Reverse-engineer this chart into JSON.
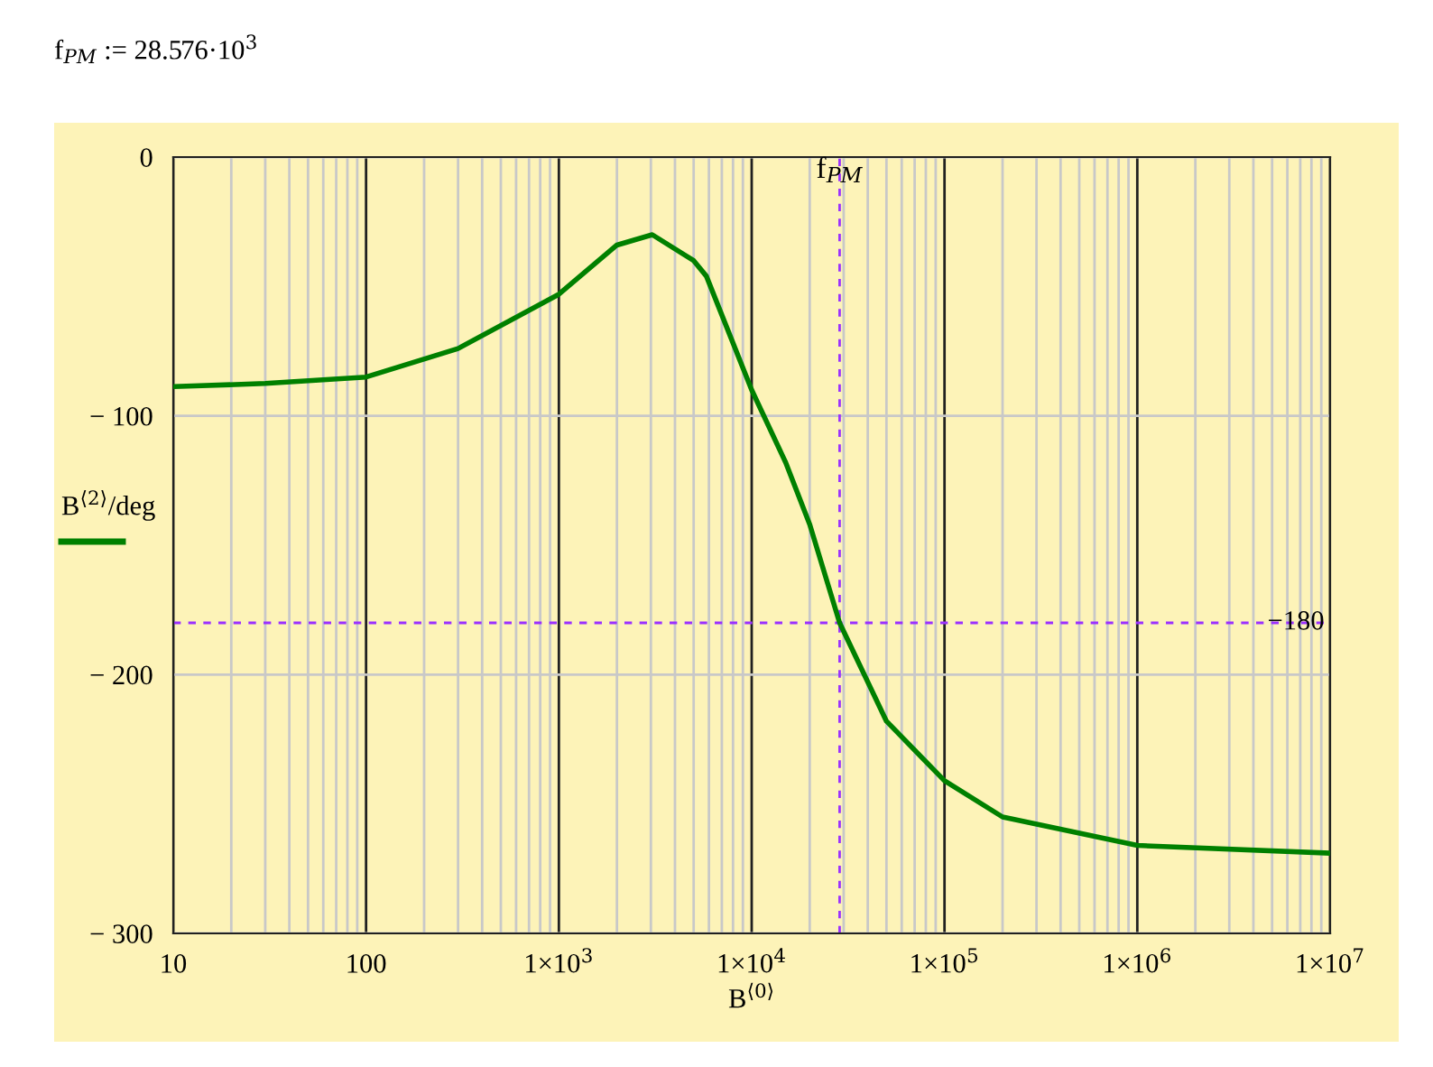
{
  "chart_data": {
    "type": "line",
    "title": "f$_{PM}$ := 28.576·10$^{3}$",
    "xlabel": "B$^{⟨0⟩}$",
    "ylabel": "B$^{⟨2⟩}$/deg",
    "series": [
      {
        "color": "#008000",
        "x": [
          10,
          30,
          100,
          300,
          1000,
          2000,
          3050,
          5000,
          5820,
          10000,
          15000,
          20000,
          28576,
          50000,
          100000,
          200000,
          1000000,
          10000000
        ],
        "values": [
          -88.7,
          -87.5,
          -85,
          -74,
          -53,
          -34,
          -30,
          -40,
          -46,
          -90,
          -118,
          -142,
          -180,
          -218,
          -241,
          -255,
          -266,
          -269
        ]
      }
    ],
    "log": "x",
    "xlim": [
      10,
      10000000
    ],
    "ylim": [
      -300,
      0
    ],
    "xticks": [
      {
        "value": 10,
        "label": "10"
      },
      {
        "value": 100,
        "label": "100"
      },
      {
        "value": 1000,
        "label": "1×10$^{3}$"
      },
      {
        "value": 10000,
        "label": "1×10$^{4}$"
      },
      {
        "value": 100000,
        "label": "1×10$^{5}$"
      },
      {
        "value": 1000000,
        "label": "1×10$^{6}$"
      },
      {
        "value": 10000000,
        "label": "1×10$^{7}$"
      }
    ],
    "yticks": [
      {
        "value": -300,
        "label": "− 300"
      },
      {
        "value": -200,
        "label": "− 200"
      },
      {
        "value": -100,
        "label": "− 100"
      },
      {
        "value": 0,
        "label": "0"
      }
    ],
    "ref_lines": [
      {
        "axis": "x",
        "value": 28576,
        "label": "f$_{PM}$",
        "color": "#9b30ff",
        "line_style": "dashed"
      },
      {
        "axis": "y",
        "value": -180,
        "label": "−180",
        "color": "#9b30ff",
        "line_style": "dashed"
      }
    ],
    "grid": true,
    "line_style": "solid",
    "marker": "none"
  }
}
